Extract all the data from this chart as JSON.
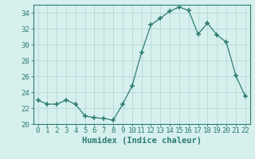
{
  "x": [
    0,
    1,
    2,
    3,
    4,
    5,
    6,
    7,
    8,
    9,
    10,
    11,
    12,
    13,
    14,
    15,
    16,
    17,
    18,
    19,
    20,
    21,
    22
  ],
  "y": [
    23.0,
    22.5,
    22.5,
    23.0,
    22.5,
    21.0,
    20.8,
    20.7,
    20.5,
    22.5,
    24.8,
    29.0,
    32.5,
    33.3,
    34.2,
    34.7,
    34.3,
    31.3,
    32.7,
    31.2,
    30.3,
    26.1,
    23.5
  ],
  "line_color": "#2e7d6e",
  "marker": "+",
  "marker_size": 5,
  "bg_color": "#d6f0ee",
  "grid_color": "#b8d8d4",
  "xlabel": "Humidex (Indice chaleur)",
  "ylim": [
    20,
    35
  ],
  "xlim": [
    -0.5,
    22.5
  ],
  "yticks": [
    20,
    22,
    24,
    26,
    28,
    30,
    32,
    34
  ],
  "xticks": [
    0,
    1,
    2,
    3,
    4,
    5,
    6,
    7,
    8,
    9,
    10,
    11,
    12,
    13,
    14,
    15,
    16,
    17,
    18,
    19,
    20,
    21,
    22
  ],
  "xtick_labels": [
    "0",
    "1",
    "2",
    "3",
    "4",
    "5",
    "6",
    "7",
    "8",
    "9",
    "10",
    "11",
    "12",
    "13",
    "14",
    "15",
    "16",
    "17",
    "18",
    "19",
    "20",
    "21",
    "22"
  ],
  "tick_fontsize": 6.5,
  "label_fontsize": 7.5
}
